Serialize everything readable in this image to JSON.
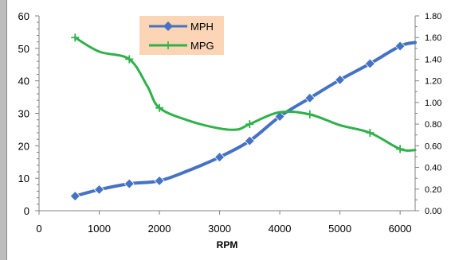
{
  "chart_data": {
    "type": "line",
    "title": "",
    "xlabel": "RPM",
    "x_ticks": [
      "0",
      "1000",
      "2000",
      "3000",
      "4000",
      "5000",
      "6000"
    ],
    "xlim": [
      0,
      6250
    ],
    "y_left": {
      "label": "",
      "ylim": [
        0,
        60
      ],
      "ticks": [
        "0",
        "10",
        "20",
        "30",
        "40",
        "50",
        "60"
      ]
    },
    "y_right": {
      "label": "",
      "ylim": [
        0,
        1.8
      ],
      "ticks": [
        "0.00",
        "0.20",
        "0.40",
        "0.60",
        "0.80",
        "1.00",
        "1.20",
        "1.40",
        "1.60",
        "1.80"
      ]
    },
    "grid": false,
    "legend": {
      "placement": "top-center",
      "background": "#fbd5b5"
    },
    "series": [
      {
        "name": "MPH",
        "axis": "left",
        "color": "#4472c4",
        "marker": "diamond",
        "x": [
          600,
          1000,
          1500,
          2000,
          3000,
          3500,
          4000,
          4500,
          5000,
          5500,
          6000
        ],
        "y": [
          4.5,
          6.5,
          8.3,
          9.2,
          16.5,
          21.5,
          29.0,
          34.7,
          40.3,
          45.3,
          50.7
        ],
        "line_x": [
          600,
          1000,
          1500,
          2000,
          2500,
          3000,
          3500,
          4000,
          4500,
          5000,
          5500,
          6000,
          6250
        ],
        "line_y": [
          4.5,
          6.5,
          8.3,
          9.2,
          12.5,
          16.5,
          21.5,
          29.0,
          34.7,
          40.3,
          45.3,
          50.7,
          51.8
        ]
      },
      {
        "name": "MPG",
        "axis": "right",
        "color": "#2fb14a",
        "marker": "plus",
        "x": [
          600,
          1500,
          2000,
          3500,
          4500,
          5500,
          6000
        ],
        "y": [
          1.6,
          1.4,
          0.95,
          0.8,
          0.89,
          0.72,
          0.57
        ],
        "line_x": [
          600,
          1000,
          1500,
          1800,
          2000,
          2500,
          3000,
          3300,
          3500,
          4000,
          4500,
          5000,
          5500,
          6000,
          6250
        ],
        "line_y": [
          1.6,
          1.47,
          1.4,
          1.15,
          0.95,
          0.83,
          0.76,
          0.75,
          0.8,
          0.91,
          0.89,
          0.79,
          0.72,
          0.57,
          0.56
        ]
      }
    ]
  }
}
